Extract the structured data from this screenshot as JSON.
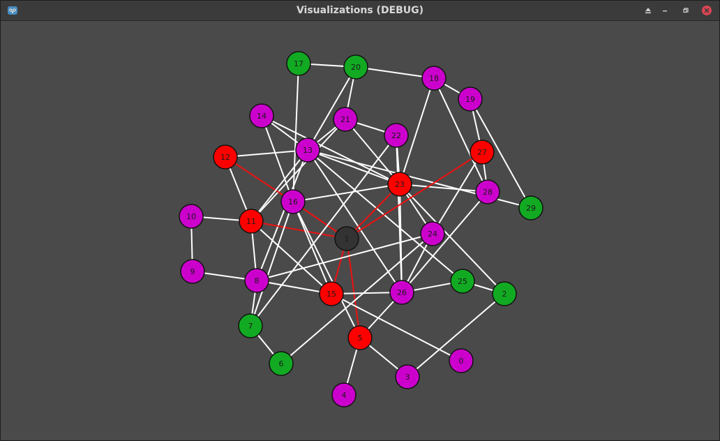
{
  "window": {
    "title": "Visualizations (DEBUG)"
  },
  "controls": {
    "eject_icon": "eject-icon",
    "minimize_icon": "minimize-icon",
    "restore_icon": "restore-icon",
    "close_icon": "close-icon"
  },
  "colors": {
    "magenta": "#cc00cc",
    "red": "#ff0000",
    "green": "#11aa22",
    "selected": "#333333",
    "edge": "#ffffff",
    "path_edge": "#ee1111"
  },
  "graph": {
    "nodes": [
      {
        "id": "0",
        "color": "magenta"
      },
      {
        "id": "1",
        "color": "selected"
      },
      {
        "id": "2",
        "color": "green"
      },
      {
        "id": "3",
        "color": "magenta"
      },
      {
        "id": "4",
        "color": "magenta"
      },
      {
        "id": "5",
        "color": "red"
      },
      {
        "id": "6",
        "color": "green"
      },
      {
        "id": "7",
        "color": "green"
      },
      {
        "id": "8",
        "color": "magenta"
      },
      {
        "id": "9",
        "color": "magenta"
      },
      {
        "id": "10",
        "color": "magenta"
      },
      {
        "id": "11",
        "color": "red"
      },
      {
        "id": "12",
        "color": "red"
      },
      {
        "id": "13",
        "color": "magenta"
      },
      {
        "id": "14",
        "color": "magenta"
      },
      {
        "id": "15",
        "color": "red"
      },
      {
        "id": "16",
        "color": "magenta"
      },
      {
        "id": "17",
        "color": "green"
      },
      {
        "id": "18",
        "color": "magenta"
      },
      {
        "id": "19",
        "color": "magenta"
      },
      {
        "id": "20",
        "color": "green"
      },
      {
        "id": "21",
        "color": "magenta"
      },
      {
        "id": "22",
        "color": "magenta"
      },
      {
        "id": "23",
        "color": "red"
      },
      {
        "id": "24",
        "color": "magenta"
      },
      {
        "id": "25",
        "color": "green"
      },
      {
        "id": "26",
        "color": "magenta"
      },
      {
        "id": "27",
        "color": "red"
      },
      {
        "id": "28",
        "color": "magenta"
      },
      {
        "id": "29",
        "color": "green"
      }
    ],
    "edges": [
      [
        "17",
        "20",
        "w"
      ],
      [
        "20",
        "18",
        "w"
      ],
      [
        "18",
        "19",
        "w"
      ],
      [
        "20",
        "13",
        "w"
      ],
      [
        "20",
        "21",
        "w"
      ],
      [
        "17",
        "16",
        "w"
      ],
      [
        "14",
        "13",
        "w"
      ],
      [
        "14",
        "16",
        "w"
      ],
      [
        "14",
        "23",
        "w"
      ],
      [
        "21",
        "13",
        "w"
      ],
      [
        "21",
        "22",
        "w"
      ],
      [
        "21",
        "11",
        "w"
      ],
      [
        "21",
        "23",
        "w"
      ],
      [
        "22",
        "23",
        "w"
      ],
      [
        "22",
        "26",
        "w"
      ],
      [
        "12",
        "13",
        "w"
      ],
      [
        "12",
        "11",
        "w"
      ],
      [
        "12",
        "16",
        "r"
      ],
      [
        "13",
        "11",
        "w"
      ],
      [
        "13",
        "23",
        "w"
      ],
      [
        "13",
        "26",
        "w"
      ],
      [
        "13",
        "25",
        "w"
      ],
      [
        "13",
        "8",
        "w"
      ],
      [
        "13",
        "29",
        "w"
      ],
      [
        "18",
        "23",
        "w"
      ],
      [
        "18",
        "28",
        "w"
      ],
      [
        "19",
        "27",
        "w"
      ],
      [
        "19",
        "29",
        "w"
      ],
      [
        "27",
        "28",
        "w"
      ],
      [
        "27",
        "24",
        "w"
      ],
      [
        "23",
        "28",
        "w"
      ],
      [
        "23",
        "24",
        "w"
      ],
      [
        "23",
        "16",
        "w"
      ],
      [
        "23",
        "2",
        "w"
      ],
      [
        "23",
        "26",
        "w"
      ],
      [
        "23",
        "1",
        "r"
      ],
      [
        "27",
        "1",
        "r"
      ],
      [
        "28",
        "26",
        "w"
      ],
      [
        "10",
        "11",
        "w"
      ],
      [
        "10",
        "9",
        "w"
      ],
      [
        "9",
        "8",
        "w"
      ],
      [
        "11",
        "8",
        "w"
      ],
      [
        "11",
        "15",
        "w"
      ],
      [
        "11",
        "1",
        "r"
      ],
      [
        "16",
        "1",
        "r"
      ],
      [
        "16",
        "15",
        "w"
      ],
      [
        "16",
        "5",
        "w"
      ],
      [
        "16",
        "7",
        "w"
      ],
      [
        "1",
        "15",
        "r"
      ],
      [
        "1",
        "5",
        "r"
      ],
      [
        "8",
        "24",
        "w"
      ],
      [
        "8",
        "7",
        "w"
      ],
      [
        "8",
        "15",
        "w"
      ],
      [
        "7",
        "6",
        "w"
      ],
      [
        "7",
        "22",
        "w"
      ],
      [
        "15",
        "26",
        "w"
      ],
      [
        "15",
        "0",
        "w"
      ],
      [
        "26",
        "25",
        "w"
      ],
      [
        "26",
        "5",
        "w"
      ],
      [
        "25",
        "2",
        "w"
      ],
      [
        "24",
        "26",
        "w"
      ],
      [
        "24",
        "6",
        "w"
      ],
      [
        "5",
        "4",
        "w"
      ],
      [
        "5",
        "3",
        "w"
      ],
      [
        "3",
        "2",
        "w"
      ]
    ]
  }
}
